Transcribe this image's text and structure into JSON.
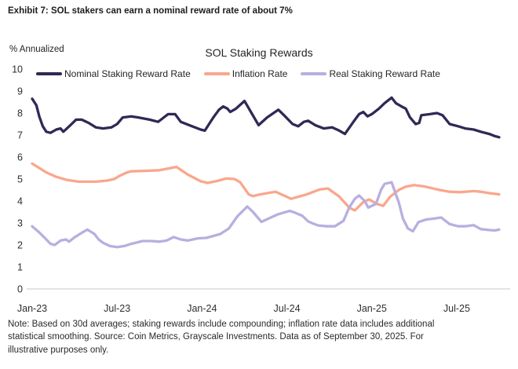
{
  "header": {
    "title": "Exhibit 7: SOL stakers can earn a nominal reward rate of about 7%"
  },
  "chart": {
    "title": "SOL Staking Rewards",
    "y_unit_label": "% Annualized"
  },
  "note": {
    "lines": [
      "Note: Based on 30d averages; staking rewards include compounding; inflation rate data includes additional",
      "statistical smoothing. Source: Coin Metrics, Grayscale Investments. Data as of September 30, 2025. For",
      "illustrative purposes only."
    ]
  },
  "colors": {
    "nominal": "#2E2A55",
    "inflation": "#F9A78C",
    "real": "#B7AFE0",
    "axis_line": "#DCDCDC",
    "text": "#242424"
  },
  "chart_data": {
    "type": "line",
    "title": "SOL Staking Rewards",
    "xlabel": "",
    "ylabel": "% Annualized",
    "ylim": [
      0,
      10
    ],
    "y_ticks": [
      0,
      1,
      2,
      3,
      4,
      5,
      6,
      7,
      8,
      9,
      10
    ],
    "x_range_months": [
      0,
      33
    ],
    "x_ticks": [
      {
        "m": 0,
        "label": "Jan-23"
      },
      {
        "m": 6,
        "label": "Jul-23"
      },
      {
        "m": 12,
        "label": "Jan-24"
      },
      {
        "m": 18,
        "label": "Jul-24"
      },
      {
        "m": 24,
        "label": "Jan-25"
      },
      {
        "m": 30,
        "label": "Jul-25"
      }
    ],
    "grid": false,
    "legend_position": "top",
    "series": [
      {
        "name": "Nominal Staking Reward Rate",
        "color": "#2E2A55",
        "points": [
          [
            0,
            8.65
          ],
          [
            0.3,
            8.35
          ],
          [
            0.5,
            7.85
          ],
          [
            0.75,
            7.4
          ],
          [
            1,
            7.15
          ],
          [
            1.3,
            7.1
          ],
          [
            1.7,
            7.25
          ],
          [
            2,
            7.3
          ],
          [
            2.2,
            7.15
          ],
          [
            2.7,
            7.45
          ],
          [
            3.1,
            7.7
          ],
          [
            3.5,
            7.7
          ],
          [
            4,
            7.55
          ],
          [
            4.5,
            7.35
          ],
          [
            5,
            7.3
          ],
          [
            5.6,
            7.35
          ],
          [
            6,
            7.5
          ],
          [
            6.4,
            7.8
          ],
          [
            7,
            7.85
          ],
          [
            7.5,
            7.8
          ],
          [
            8.3,
            7.7
          ],
          [
            8.9,
            7.6
          ],
          [
            9.2,
            7.75
          ],
          [
            9.6,
            7.95
          ],
          [
            10.1,
            7.95
          ],
          [
            10.5,
            7.6
          ],
          [
            11.1,
            7.45
          ],
          [
            11.9,
            7.25
          ],
          [
            12.2,
            7.2
          ],
          [
            12.8,
            7.8
          ],
          [
            13.2,
            8.15
          ],
          [
            13.5,
            8.3
          ],
          [
            13.8,
            8.2
          ],
          [
            14,
            8.05
          ],
          [
            14.4,
            8.2
          ],
          [
            15,
            8.55
          ],
          [
            15.5,
            8
          ],
          [
            16,
            7.45
          ],
          [
            16.6,
            7.8
          ],
          [
            17.4,
            8.15
          ],
          [
            17.8,
            7.9
          ],
          [
            18.4,
            7.5
          ],
          [
            18.8,
            7.4
          ],
          [
            19.2,
            7.6
          ],
          [
            19.5,
            7.65
          ],
          [
            20,
            7.45
          ],
          [
            20.6,
            7.3
          ],
          [
            21.2,
            7.35
          ],
          [
            21.7,
            7.2
          ],
          [
            22.1,
            7.05
          ],
          [
            22.7,
            7.6
          ],
          [
            23.1,
            7.95
          ],
          [
            23.4,
            8.05
          ],
          [
            23.7,
            7.85
          ],
          [
            24,
            7.95
          ],
          [
            24.5,
            8.2
          ],
          [
            24.9,
            8.45
          ],
          [
            25.1,
            8.55
          ],
          [
            25.4,
            8.7
          ],
          [
            25.7,
            8.45
          ],
          [
            26.1,
            8.3
          ],
          [
            26.4,
            8.2
          ],
          [
            26.7,
            7.8
          ],
          [
            27.1,
            7.5
          ],
          [
            27.35,
            7.55
          ],
          [
            27.5,
            7.9
          ],
          [
            28.1,
            7.95
          ],
          [
            28.6,
            8
          ],
          [
            29,
            7.9
          ],
          [
            29.5,
            7.5
          ],
          [
            30.1,
            7.4
          ],
          [
            30.6,
            7.3
          ],
          [
            31.2,
            7.25
          ],
          [
            31.7,
            7.15
          ],
          [
            32.3,
            7.05
          ],
          [
            32.7,
            6.95
          ],
          [
            33,
            6.9
          ]
        ]
      },
      {
        "name": "Inflation Rate",
        "color": "#F9A78C",
        "points": [
          [
            0,
            5.7
          ],
          [
            0.5,
            5.5
          ],
          [
            1,
            5.3
          ],
          [
            1.7,
            5.1
          ],
          [
            2.5,
            4.95
          ],
          [
            3.3,
            4.88
          ],
          [
            4.5,
            4.88
          ],
          [
            5.3,
            4.93
          ],
          [
            5.8,
            5
          ],
          [
            6.2,
            5.15
          ],
          [
            6.7,
            5.3
          ],
          [
            7,
            5.35
          ],
          [
            8,
            5.37
          ],
          [
            9,
            5.4
          ],
          [
            9.8,
            5.5
          ],
          [
            10.2,
            5.55
          ],
          [
            11,
            5.2
          ],
          [
            11.9,
            4.9
          ],
          [
            12.4,
            4.82
          ],
          [
            13,
            4.9
          ],
          [
            13.7,
            5.02
          ],
          [
            14.3,
            5
          ],
          [
            14.7,
            4.85
          ],
          [
            15.3,
            4.3
          ],
          [
            15.6,
            4.22
          ],
          [
            16.1,
            4.3
          ],
          [
            17.2,
            4.42
          ],
          [
            18.3,
            4.1
          ],
          [
            19.4,
            4.3
          ],
          [
            20.3,
            4.52
          ],
          [
            20.9,
            4.57
          ],
          [
            21.7,
            4.2
          ],
          [
            22.4,
            3.7
          ],
          [
            22.8,
            3.57
          ],
          [
            23.4,
            3.95
          ],
          [
            23.8,
            4.07
          ],
          [
            24.4,
            3.86
          ],
          [
            24.8,
            3.78
          ],
          [
            25.3,
            4.2
          ],
          [
            25.9,
            4.5
          ],
          [
            26.4,
            4.65
          ],
          [
            27,
            4.72
          ],
          [
            27.8,
            4.65
          ],
          [
            28.8,
            4.5
          ],
          [
            29.5,
            4.42
          ],
          [
            30.2,
            4.4
          ],
          [
            31.2,
            4.45
          ],
          [
            31.7,
            4.42
          ],
          [
            32.4,
            4.35
          ],
          [
            33,
            4.3
          ]
        ]
      },
      {
        "name": "Real Staking Reward Rate",
        "color": "#B7AFE0",
        "points": [
          [
            0,
            2.85
          ],
          [
            0.45,
            2.6
          ],
          [
            1,
            2.25
          ],
          [
            1.3,
            2.05
          ],
          [
            1.6,
            2
          ],
          [
            2,
            2.2
          ],
          [
            2.4,
            2.25
          ],
          [
            2.6,
            2.15
          ],
          [
            3,
            2.35
          ],
          [
            3.5,
            2.55
          ],
          [
            3.9,
            2.7
          ],
          [
            4.4,
            2.5
          ],
          [
            4.7,
            2.25
          ],
          [
            5,
            2.1
          ],
          [
            5.5,
            1.95
          ],
          [
            6,
            1.9
          ],
          [
            6.5,
            1.95
          ],
          [
            7,
            2.05
          ],
          [
            7.8,
            2.18
          ],
          [
            8.4,
            2.18
          ],
          [
            9,
            2.15
          ],
          [
            9.5,
            2.2
          ],
          [
            10,
            2.36
          ],
          [
            10.5,
            2.25
          ],
          [
            11,
            2.2
          ],
          [
            11.7,
            2.3
          ],
          [
            12.3,
            2.32
          ],
          [
            13.3,
            2.5
          ],
          [
            13.9,
            2.75
          ],
          [
            14.5,
            3.3
          ],
          [
            15.2,
            3.75
          ],
          [
            15.6,
            3.5
          ],
          [
            16.2,
            3.05
          ],
          [
            16.7,
            3.2
          ],
          [
            17.4,
            3.4
          ],
          [
            18.2,
            3.55
          ],
          [
            18.6,
            3.46
          ],
          [
            19.1,
            3.32
          ],
          [
            19.5,
            3.07
          ],
          [
            19.9,
            2.96
          ],
          [
            20.2,
            2.89
          ],
          [
            20.8,
            2.85
          ],
          [
            21.4,
            2.85
          ],
          [
            22,
            3.1
          ],
          [
            22.4,
            3.7
          ],
          [
            22.8,
            4.1
          ],
          [
            23.1,
            4.25
          ],
          [
            23.5,
            4
          ],
          [
            23.75,
            3.7
          ],
          [
            24.3,
            3.87
          ],
          [
            24.65,
            4.5
          ],
          [
            24.9,
            4.78
          ],
          [
            25.4,
            4.85
          ],
          [
            25.7,
            4.3
          ],
          [
            25.9,
            3.95
          ],
          [
            26.2,
            3.2
          ],
          [
            26.55,
            2.75
          ],
          [
            26.9,
            2.62
          ],
          [
            27.3,
            3.04
          ],
          [
            27.8,
            3.15
          ],
          [
            28.4,
            3.2
          ],
          [
            28.9,
            3.25
          ],
          [
            29.5,
            2.95
          ],
          [
            30.1,
            2.85
          ],
          [
            30.6,
            2.85
          ],
          [
            31.2,
            2.9
          ],
          [
            31.7,
            2.72
          ],
          [
            32.3,
            2.68
          ],
          [
            32.7,
            2.66
          ],
          [
            33,
            2.7
          ]
        ]
      }
    ]
  }
}
